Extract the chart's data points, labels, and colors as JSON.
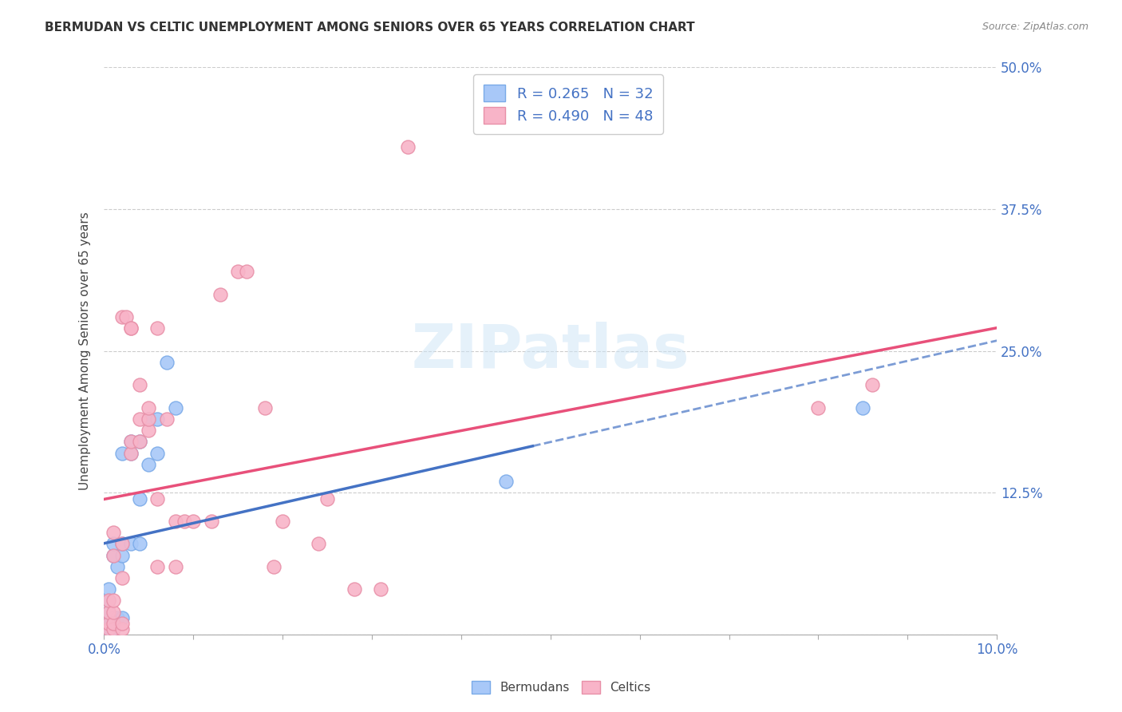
{
  "title": "BERMUDAN VS CELTIC UNEMPLOYMENT AMONG SENIORS OVER 65 YEARS CORRELATION CHART",
  "source": "Source: ZipAtlas.com",
  "ylabel": "Unemployment Among Seniors over 65 years",
  "watermark": "ZIPatlas",
  "xlim": [
    0.0,
    0.1
  ],
  "ylim": [
    0.0,
    0.5
  ],
  "bermudans_color": "#a8c8f8",
  "celtics_color": "#f8b4c8",
  "bermudans_edge": "#7aaae8",
  "celtics_edge": "#e890a8",
  "line_bermudans": "#4472c4",
  "line_celtics": "#e8507a",
  "R_bermudans": 0.265,
  "N_bermudans": 32,
  "R_celtics": 0.49,
  "N_celtics": 48,
  "bermudans_x": [
    0.0005,
    0.0005,
    0.0005,
    0.0005,
    0.0005,
    0.0008,
    0.0008,
    0.001,
    0.001,
    0.001,
    0.001,
    0.001,
    0.0015,
    0.0015,
    0.002,
    0.002,
    0.002,
    0.002,
    0.003,
    0.003,
    0.003,
    0.004,
    0.004,
    0.004,
    0.005,
    0.005,
    0.006,
    0.006,
    0.007,
    0.008,
    0.045,
    0.085
  ],
  "bermudans_y": [
    0.005,
    0.01,
    0.02,
    0.03,
    0.04,
    0.005,
    0.01,
    0.005,
    0.01,
    0.015,
    0.07,
    0.08,
    0.015,
    0.06,
    0.015,
    0.07,
    0.08,
    0.16,
    0.08,
    0.16,
    0.17,
    0.08,
    0.12,
    0.17,
    0.15,
    0.19,
    0.16,
    0.19,
    0.24,
    0.2,
    0.135,
    0.2
  ],
  "celtics_x": [
    0.0005,
    0.0005,
    0.0005,
    0.0005,
    0.001,
    0.001,
    0.001,
    0.001,
    0.001,
    0.001,
    0.002,
    0.002,
    0.002,
    0.002,
    0.002,
    0.0025,
    0.003,
    0.003,
    0.003,
    0.003,
    0.004,
    0.004,
    0.004,
    0.005,
    0.005,
    0.005,
    0.006,
    0.006,
    0.006,
    0.007,
    0.008,
    0.008,
    0.009,
    0.01,
    0.012,
    0.013,
    0.015,
    0.016,
    0.018,
    0.019,
    0.02,
    0.024,
    0.025,
    0.028,
    0.031,
    0.034,
    0.08,
    0.086
  ],
  "celtics_y": [
    0.005,
    0.01,
    0.02,
    0.03,
    0.005,
    0.01,
    0.02,
    0.03,
    0.07,
    0.09,
    0.005,
    0.01,
    0.05,
    0.08,
    0.28,
    0.28,
    0.16,
    0.17,
    0.27,
    0.27,
    0.17,
    0.19,
    0.22,
    0.18,
    0.19,
    0.2,
    0.06,
    0.12,
    0.27,
    0.19,
    0.06,
    0.1,
    0.1,
    0.1,
    0.1,
    0.3,
    0.32,
    0.32,
    0.2,
    0.06,
    0.1,
    0.08,
    0.12,
    0.04,
    0.04,
    0.43,
    0.2,
    0.22
  ],
  "background_color": "#ffffff",
  "grid_color": "#cccccc",
  "tick_color": "#4472c4",
  "title_color": "#333333",
  "source_color": "#888888"
}
